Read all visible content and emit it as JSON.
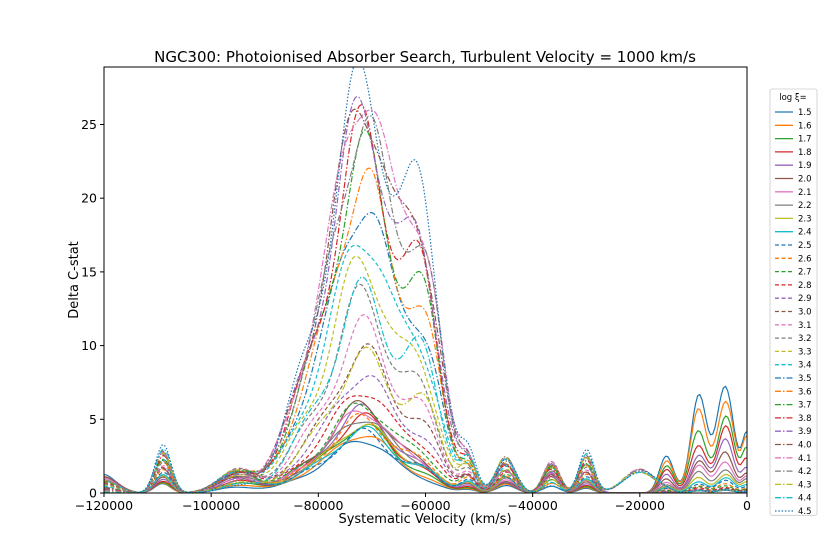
{
  "chart_data": {
    "type": "line",
    "title": "NGC300: Photoionised Absorber Search, Turbulent Velocity = 1000 km/s",
    "xlabel": "Systematic Velocity (km/s)",
    "ylabel": "Delta C-stat",
    "xlim": [
      -120000,
      0
    ],
    "ylim": [
      0,
      28.9
    ],
    "xticks": [
      -120000,
      -100000,
      -80000,
      -60000,
      -40000,
      -20000,
      0
    ],
    "yticks": [
      0,
      5,
      10,
      15,
      20,
      25
    ],
    "grid": false,
    "legend_position": "outside-right",
    "legend_title": "log ξ=",
    "series": [
      {
        "name": "1.5",
        "color": "#1f77b4",
        "dash": "solid",
        "peak": 3.6,
        "edge": 7.7
      },
      {
        "name": "1.6",
        "color": "#ff7f0e",
        "dash": "solid",
        "peak": 4.0,
        "edge": 6.7
      },
      {
        "name": "1.7",
        "color": "#2ca02c",
        "dash": "solid",
        "peak": 4.5,
        "edge": 5.3
      },
      {
        "name": "1.8",
        "color": "#d62728",
        "dash": "solid",
        "peak": 5.0,
        "edge": 4.3
      },
      {
        "name": "1.9",
        "color": "#9467bd",
        "dash": "solid",
        "peak": 5.5,
        "edge": 3.4
      },
      {
        "name": "2.0",
        "color": "#8c564b",
        "dash": "solid",
        "peak": 5.9,
        "edge": 2.7
      },
      {
        "name": "2.1",
        "color": "#e377c2",
        "dash": "solid",
        "peak": 5.6,
        "edge": 2.2
      },
      {
        "name": "2.2",
        "color": "#7f7f7f",
        "dash": "solid",
        "peak": 5.1,
        "edge": 1.7
      },
      {
        "name": "2.3",
        "color": "#bcbd22",
        "dash": "solid",
        "peak": 4.6,
        "edge": 1.3
      },
      {
        "name": "2.4",
        "color": "#17becf",
        "dash": "solid",
        "peak": 4.2,
        "edge": 1.0
      },
      {
        "name": "2.5",
        "color": "#1f77b4",
        "dash": "dashed",
        "peak": 4.0,
        "edge": 0.8
      },
      {
        "name": "2.6",
        "color": "#ff7f0e",
        "dash": "dashed",
        "peak": 5.0,
        "edge": 0.6
      },
      {
        "name": "2.7",
        "color": "#2ca02c",
        "dash": "dashed",
        "peak": 6.0,
        "edge": 0.5
      },
      {
        "name": "2.8",
        "color": "#d62728",
        "dash": "dashed",
        "peak": 7.0,
        "edge": 0.4
      },
      {
        "name": "2.9",
        "color": "#9467bd",
        "dash": "dashed",
        "peak": 8.0,
        "edge": 0.3
      },
      {
        "name": "3.0",
        "color": "#8c564b",
        "dash": "dashed",
        "peak": 9.5,
        "edge": 0.3
      },
      {
        "name": "3.1",
        "color": "#e377c2",
        "dash": "dashed",
        "peak": 11.0,
        "edge": 0.2
      },
      {
        "name": "3.2",
        "color": "#7f7f7f",
        "dash": "dashed",
        "peak": 13.0,
        "edge": 0.2
      },
      {
        "name": "3.3",
        "color": "#bcbd22",
        "dash": "dashed",
        "peak": 15.5,
        "edge": 0.2
      },
      {
        "name": "3.4",
        "color": "#17becf",
        "dash": "dashed",
        "peak": 17.5,
        "edge": 0.2
      },
      {
        "name": "3.5",
        "color": "#1f77b4",
        "dash": "dashdot",
        "peak": 19.5,
        "edge": 0.2
      },
      {
        "name": "3.6",
        "color": "#ff7f0e",
        "dash": "dashdot",
        "peak": 21.0,
        "edge": 0.2
      },
      {
        "name": "3.7",
        "color": "#2ca02c",
        "dash": "dashdot",
        "peak": 22.5,
        "edge": 0.2
      },
      {
        "name": "3.8",
        "color": "#d62728",
        "dash": "dashdot",
        "peak": 24.0,
        "edge": 0.2
      },
      {
        "name": "3.9",
        "color": "#9467bd",
        "dash": "dashdot",
        "peak": 25.5,
        "edge": 0.2
      },
      {
        "name": "4.0",
        "color": "#8c564b",
        "dash": "dashdot",
        "peak": 26.5,
        "edge": 0.2
      },
      {
        "name": "4.1",
        "color": "#e377c2",
        "dash": "dashdot",
        "peak": 27.2,
        "edge": 0.2
      },
      {
        "name": "4.2",
        "color": "#7f7f7f",
        "dash": "dashdot",
        "peak": 24.8,
        "edge": 0.2
      },
      {
        "name": "4.3",
        "color": "#bcbd22",
        "dash": "dashdot",
        "peak": 9.1,
        "edge": 0.2
      },
      {
        "name": "4.4",
        "color": "#17becf",
        "dash": "dashdot",
        "peak": 13.3,
        "edge": 0.2
      },
      {
        "name": "4.5",
        "color": "#1f77b4",
        "dash": "dotted",
        "peak": 27.5,
        "edge": 0.2
      }
    ]
  }
}
